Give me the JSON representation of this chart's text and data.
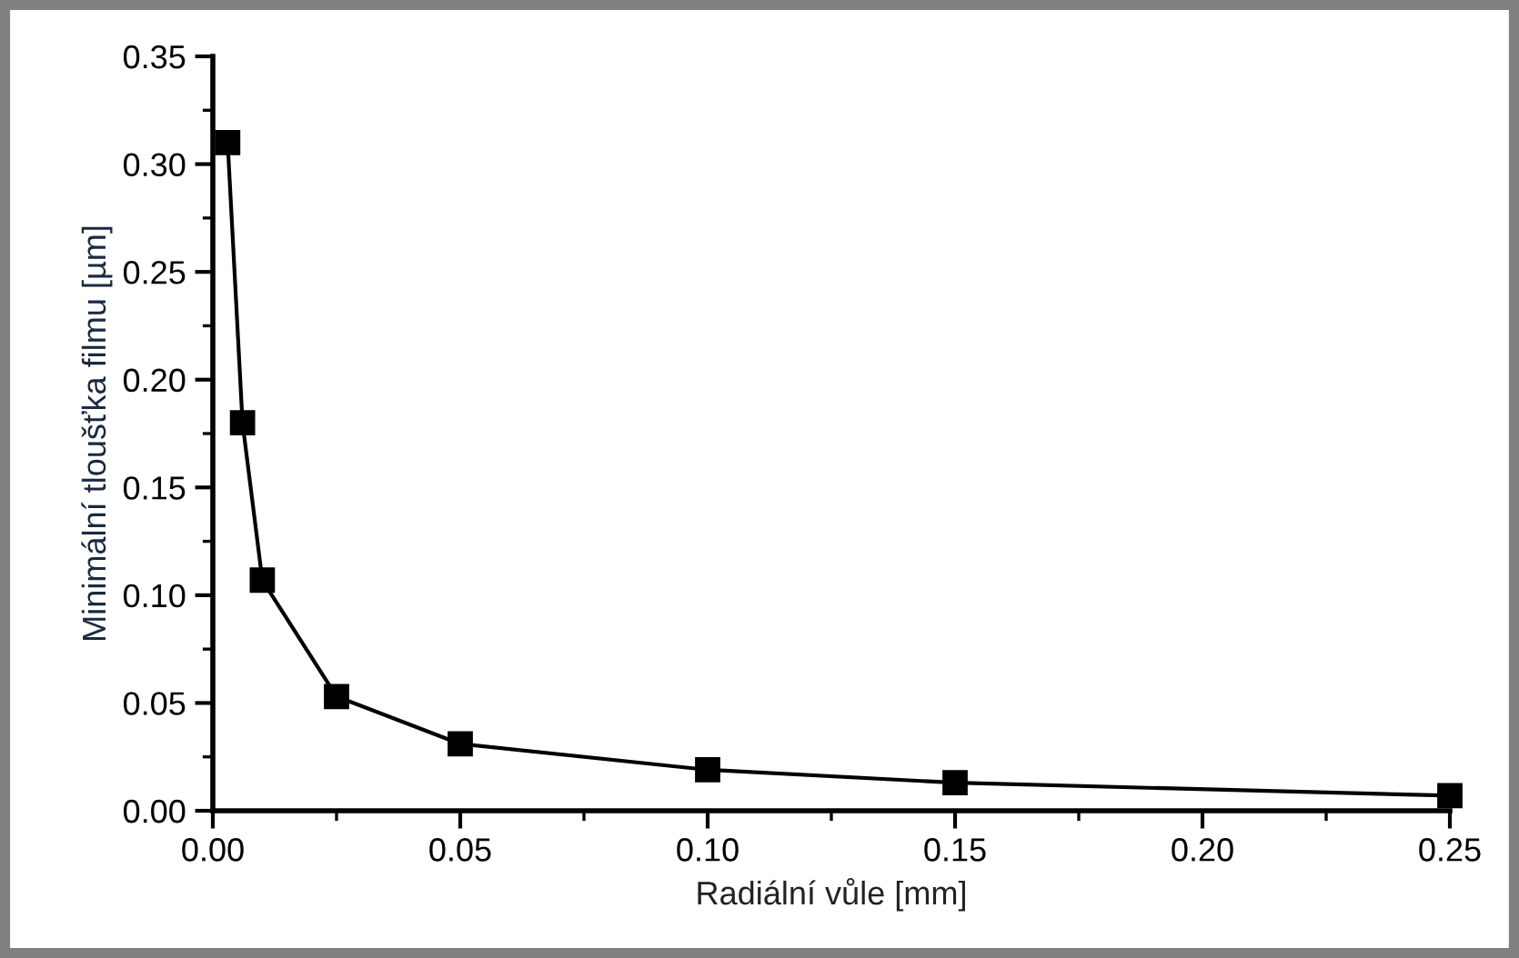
{
  "chart_data": {
    "type": "line",
    "xlabel": "Radiální vůle [mm]",
    "ylabel": "Minimální tloušťka filmu [µm]",
    "x": [
      0.003,
      0.006,
      0.01,
      0.025,
      0.05,
      0.1,
      0.15,
      0.25
    ],
    "series": [
      {
        "color": "#000000",
        "values": [
          0.31,
          0.18,
          0.107,
          0.053,
          0.031,
          0.019,
          0.013,
          0.007
        ]
      }
    ],
    "marker": "square",
    "line_style": "solid",
    "grid": false,
    "legend": false,
    "xlim": [
      0,
      0.25
    ],
    "ylim": [
      0,
      0.35
    ],
    "xticks": [
      {
        "value": 0,
        "label": "0.00"
      },
      0.05,
      {
        "value": 0.1,
        "label": "0.10"
      },
      0.15,
      {
        "value": 0.2,
        "label": "0.20"
      },
      0.25
    ],
    "yticks": [
      {
        "value": 0,
        "label": "0.00"
      },
      0.05,
      {
        "value": 0.1,
        "label": "0.10"
      },
      0.15,
      {
        "value": 0.2,
        "label": "0.20"
      },
      0.25,
      {
        "value": 0.3,
        "label": "0.30"
      },
      0.35
    ]
  }
}
